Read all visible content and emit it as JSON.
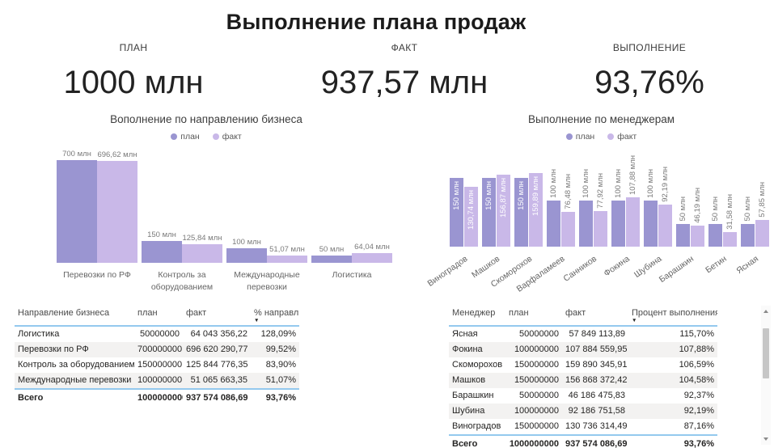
{
  "page": {
    "title": "Выполнение плана продаж"
  },
  "kpis": [
    {
      "label": "ПЛАН",
      "value": "1000 млн"
    },
    {
      "label": "ФАКТ",
      "value": "937,57 млн"
    },
    {
      "label": "ВЫПОЛНЕНИЕ",
      "value": "93,76%"
    }
  ],
  "colors": {
    "plan": "#9a95d1",
    "fact": "#c9b8e8",
    "accent_line": "#94c9ee"
  },
  "chart_data": [
    {
      "type": "bar",
      "title": "Вополнение по направлению бизнеса",
      "legend": [
        "план",
        "факт"
      ],
      "legend_position": "top",
      "grid": false,
      "unit": "млн",
      "ylim": [
        0,
        700
      ],
      "categories": [
        "Перевозки по РФ",
        "Контроль за оборудованием",
        "Международные перевозки",
        "Логистика"
      ],
      "series": [
        {
          "name": "план",
          "values": [
            700,
            150,
            100,
            50
          ],
          "labels": [
            "700 млн",
            "150 млн",
            "100 млн",
            "50 млн"
          ]
        },
        {
          "name": "факт",
          "values": [
            696.62,
            125.84,
            51.07,
            64.04
          ],
          "labels": [
            "696,62 млн",
            "125,84 млн",
            "51,07 млн",
            "64,04 млн"
          ]
        }
      ],
      "labels_inside": [
        false,
        false,
        false,
        false
      ]
    },
    {
      "type": "bar",
      "title": "Выполнение по менеджерам",
      "legend": [
        "план",
        "факт"
      ],
      "legend_position": "top",
      "grid": false,
      "unit": "млн",
      "ylim": [
        0,
        159.89
      ],
      "categories": [
        "Виноградов",
        "Машков",
        "Скоморохов",
        "Варфаламеев",
        "Санников",
        "Фокина",
        "Шубина",
        "Барашкин",
        "Бетин",
        "Ясная"
      ],
      "series": [
        {
          "name": "план",
          "values": [
            150,
            150,
            150,
            100,
            100,
            100,
            100,
            50,
            50,
            50
          ],
          "labels": [
            "150 млн",
            "150 млн",
            "150 млн",
            "100 млн",
            "100 млн",
            "100 млн",
            "100 млн",
            "50 млн",
            "50 млн",
            "50 млн"
          ]
        },
        {
          "name": "факт",
          "values": [
            130.74,
            156.87,
            159.89,
            76.48,
            77.92,
            107.88,
            92.19,
            46.19,
            31.58,
            57.85
          ],
          "labels": [
            "130,74 млн",
            "156,87 млн",
            "159,89 млн",
            "76,48 млн",
            "77,92 млн",
            "107,88 млн",
            "92,19 млн",
            "46,19 млн",
            "31,58 млн",
            "57,85 млн"
          ]
        }
      ],
      "labels_inside": [
        true,
        true,
        true,
        false,
        false,
        false,
        false,
        false,
        false,
        false
      ]
    }
  ],
  "tables": {
    "business": {
      "columns": [
        {
          "label": "Направление бизнеса",
          "align": "left",
          "sorted": false
        },
        {
          "label": "план",
          "align": "right",
          "sorted": false
        },
        {
          "label": "факт",
          "align": "right",
          "sorted": false
        },
        {
          "label": "% направл",
          "align": "right",
          "sorted": true
        }
      ],
      "rows": [
        [
          "Логистика",
          "50000000",
          "64 043 356,22",
          "128,09%"
        ],
        [
          "Перевозки по РФ",
          "700000000",
          "696 620 290,77",
          "99,52%"
        ],
        [
          "Контроль за оборудованием",
          "150000000",
          "125 844 776,35",
          "83,90%"
        ],
        [
          "Международные перевозки",
          "100000000",
          "51 065 663,35",
          "51,07%"
        ]
      ],
      "total": [
        "Всего",
        "1000000000",
        "937 574 086,69",
        "93,76%"
      ]
    },
    "managers": {
      "columns": [
        {
          "label": "Менеджер",
          "align": "left",
          "sorted": false
        },
        {
          "label": "план",
          "align": "right",
          "sorted": false
        },
        {
          "label": "факт",
          "align": "right",
          "sorted": false
        },
        {
          "label": "Процент выполнения",
          "align": "right",
          "sorted": true
        }
      ],
      "rows": [
        [
          "Ясная",
          "50000000",
          "57 849 113,89",
          "115,70%"
        ],
        [
          "Фокина",
          "100000000",
          "107 884 559,95",
          "107,88%"
        ],
        [
          "Скоморохов",
          "150000000",
          "159 890 345,91",
          "106,59%"
        ],
        [
          "Машков",
          "150000000",
          "156 868 372,42",
          "104,58%"
        ],
        [
          "Барашкин",
          "50000000",
          "46 186 475,83",
          "92,37%"
        ],
        [
          "Шубина",
          "100000000",
          "92 186 751,58",
          "92,19%"
        ],
        [
          "Виноградов",
          "150000000",
          "130 736 314,49",
          "87,16%"
        ]
      ],
      "total": [
        "Всего",
        "1000000000",
        "937 574 086,69",
        "93,76%"
      ]
    }
  }
}
